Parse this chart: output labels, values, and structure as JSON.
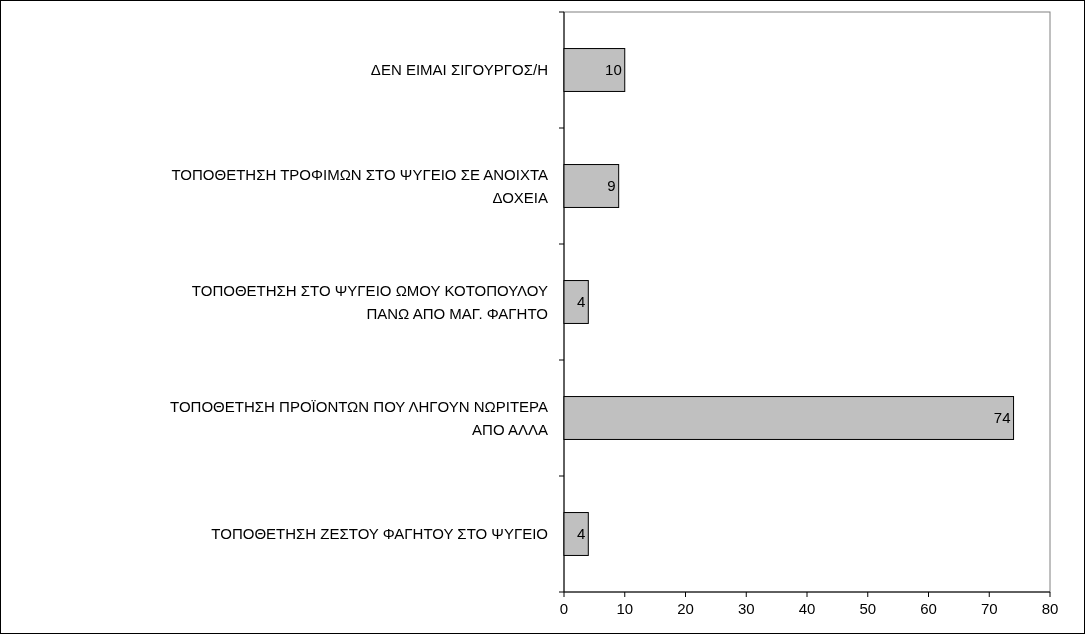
{
  "chart_data": {
    "type": "bar",
    "orientation": "horizontal",
    "categories": [
      "ΔΕΝ ΕΙΜΑΙ ΣΙΓΟΥΡΓΟΣ/Η",
      "ΤΟΠΟΘΕΤΗΣΗ ΤΡΟΦΙΜΩΝ ΣΤΟ ΨΥΓΕΙΟ ΣΕ ΑΝΟΙΧΤΑ ΔΟΧΕΙΑ",
      "ΤΟΠΟΘΕΤΗΣΗ ΣΤΟ ΨΥΓΕΙΟ ΩΜΟΥ ΚΟΤΟΠΟΥΛΟΥ ΠΑΝΩ ΑΠΟ ΜΑΓ. ΦΑΓΗΤΟ",
      "ΤΟΠΟΘΕΤΗΣΗ ΠΡΟΪΟΝΤΩΝ ΠΟΥ ΛΗΓΟΥΝ ΝΩΡΙΤΕΡΑ ΑΠΟ ΑΛΛΑ",
      "ΤΟΠΟΘΕΤΗΣΗ ΖΕΣΤΟΥ ΦΑΓΗΤΟΥ ΣΤΟ ΨΥΓΕΙΟ"
    ],
    "values": [
      10,
      9,
      4,
      74,
      4
    ],
    "color": "#c0c0c0",
    "xlim": [
      0,
      80
    ],
    "xticks": [
      0,
      10,
      20,
      30,
      40,
      50,
      60,
      70,
      80
    ],
    "data_labels": true,
    "grid": false
  }
}
